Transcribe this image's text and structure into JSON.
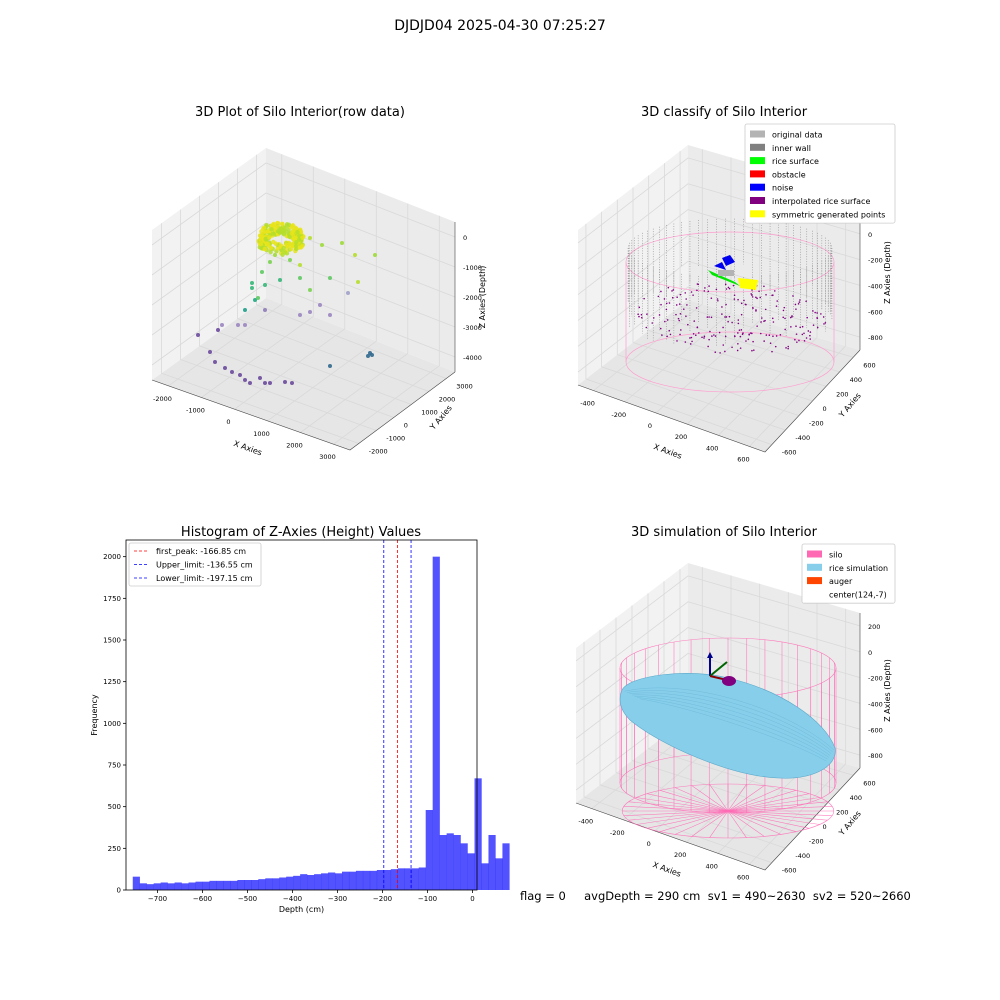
{
  "suptitle": "DJDJD04 2025-04-30 07:25:27",
  "stats_text": "flag = 0     avgDepth = 290 cm  sv1 = 490~2630  sv2 = 520~2660",
  "charts": [
    {
      "id": "raw",
      "title": "3D Plot of Silo Interior(row data)",
      "xlabel": "X Axies",
      "ylabel": "Y Axies",
      "zlabel": "Z Axies (Depth)",
      "xticks": [
        "-2000",
        "-1000",
        "0",
        "1000",
        "2000",
        "3000"
      ],
      "yticks": [
        "-2000",
        "-1000",
        "0",
        "1000",
        "2000",
        "3000"
      ],
      "zticks": [
        "-4000",
        "-3000",
        "-2000",
        "-1000",
        "0"
      ]
    },
    {
      "id": "classify",
      "title": "3D classify of Silo Interior",
      "xlabel": "X Axies",
      "ylabel": "Y Axies",
      "zlabel": "Z Axies (Depth)",
      "xticks": [
        "-400",
        "-200",
        "0",
        "200",
        "400",
        "600"
      ],
      "yticks": [
        "-600",
        "-400",
        "-200",
        "0",
        "200",
        "400",
        "600"
      ],
      "zticks": [
        "-800",
        "-600",
        "-400",
        "-200",
        "0",
        "200"
      ],
      "legend": [
        {
          "label": "original data",
          "color": "#b3b3b3"
        },
        {
          "label": "inner wall",
          "color": "#808080"
        },
        {
          "label": "rice surface",
          "color": "#00ff00"
        },
        {
          "label": "obstacle",
          "color": "#ff0000"
        },
        {
          "label": "noise",
          "color": "#0000ff"
        },
        {
          "label": "interpolated rice surface",
          "color": "#800080"
        },
        {
          "label": "symmetric generated points",
          "color": "#ffff00"
        }
      ]
    },
    {
      "id": "sim",
      "title": "3D simulation of Silo Interior",
      "xlabel": "X Axies",
      "ylabel": "Y Axies",
      "zlabel": "Z Axies (Depth)",
      "xticks": [
        "-400",
        "-200",
        "0",
        "200",
        "400",
        "600"
      ],
      "yticks": [
        "-600",
        "-400",
        "-200",
        "0",
        "200",
        "400",
        "600"
      ],
      "zticks": [
        "-800",
        "-600",
        "-400",
        "-200",
        "0",
        "200"
      ],
      "legend": [
        {
          "label": "silo",
          "color": "#ff69b4"
        },
        {
          "label": "rice simulation",
          "color": "#87ceeb"
        },
        {
          "label": "auger",
          "color": "#ff4500"
        },
        {
          "label": "center(124,-7)",
          "color": "#ffffff"
        }
      ]
    }
  ],
  "chart_data": {
    "type": "bar",
    "title": "Histogram of Z-Axies (Height) Values",
    "xlabel": "Depth (cm)",
    "ylabel": "Frequency",
    "xlim": [
      -770,
      10
    ],
    "ylim": [
      0,
      2100
    ],
    "xticks": [
      -700,
      -600,
      -500,
      -400,
      -300,
      -200,
      -100,
      0
    ],
    "yticks": [
      0,
      250,
      500,
      750,
      1000,
      1250,
      1500,
      1750,
      2000
    ],
    "bin_width": 15.5,
    "bin_start": -755,
    "values": [
      80,
      40,
      35,
      40,
      45,
      40,
      45,
      40,
      45,
      50,
      50,
      55,
      55,
      55,
      55,
      60,
      60,
      60,
      65,
      70,
      70,
      75,
      80,
      85,
      95,
      90,
      95,
      100,
      105,
      100,
      110,
      110,
      115,
      115,
      115,
      120,
      120,
      125,
      130,
      130,
      130,
      135,
      480,
      2000,
      330,
      340,
      330,
      280,
      220,
      670,
      160,
      330,
      190,
      280
    ],
    "bar_color": "#0000ff",
    "lines": [
      {
        "label": "first_peak: -166.85 cm",
        "x": -166.85,
        "color": "#ff0000"
      },
      {
        "label": "Upper_limit: -136.55 cm",
        "x": -136.55,
        "color": "#0000ff"
      },
      {
        "label": "Lower_limit: -197.15 cm",
        "x": -197.15,
        "color": "#0000ff"
      }
    ],
    "legend_position": "upper-left",
    "grid": false
  }
}
